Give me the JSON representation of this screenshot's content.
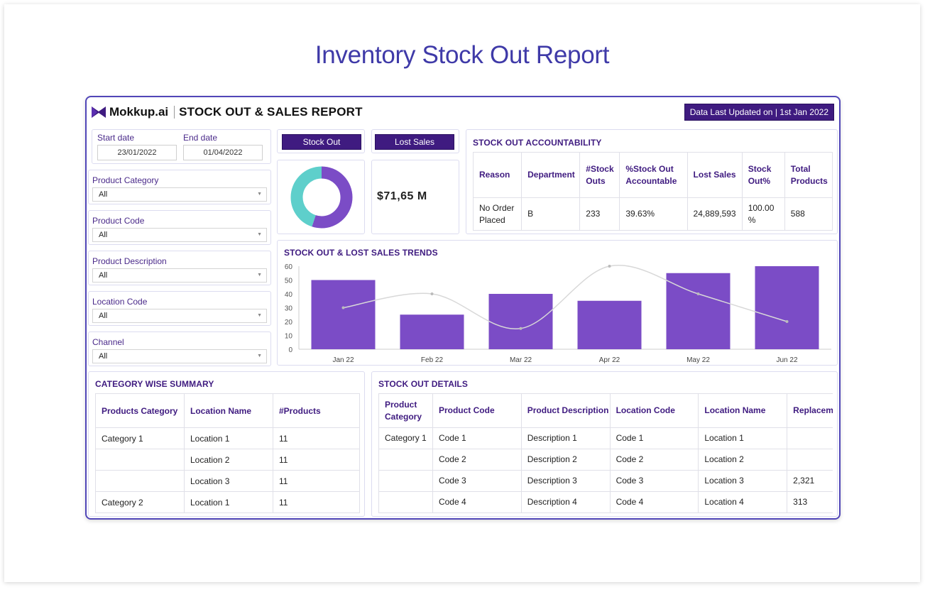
{
  "page_title": "Inventory Stock Out Report",
  "header": {
    "logo_text": "Mokkup.ai",
    "report_title": "STOCK OUT & SALES REPORT",
    "updated": "Data Last Updated on | 1st Jan 2022"
  },
  "filters": {
    "start_label": "Start date",
    "start_value": "23/01/2022",
    "end_label": "End date",
    "end_value": "01/04/2022",
    "items": [
      {
        "label": "Product Category",
        "value": "All"
      },
      {
        "label": "Product Code",
        "value": "All"
      },
      {
        "label": "Product Description",
        "value": "All"
      },
      {
        "label": "Location Code",
        "value": "All"
      },
      {
        "label": "Channel",
        "value": "All"
      }
    ]
  },
  "kpis": {
    "stock_out_label": "Stock Out",
    "lost_sales_label": "Lost Sales",
    "lost_sales_value": "$71,65 M",
    "donut": {
      "values": [
        55,
        45
      ],
      "colors": [
        "#7b4cc6",
        "#5ecfcb"
      ]
    }
  },
  "accountability": {
    "title": "STOCK OUT ACCOUNTABILITY",
    "columns": [
      "Reason",
      "Department",
      "#Stock Outs",
      "%Stock Out Accountable",
      "Lost Sales",
      "Stock Out%",
      "Total Products"
    ],
    "rows": [
      [
        "No Order Placed",
        "B",
        "233",
        "39.63%",
        "24,889,593",
        "100.00 %",
        "588"
      ]
    ]
  },
  "trends": {
    "title": "STOCK OUT & LOST SALES TRENDS"
  },
  "chart_data": {
    "type": "bar",
    "categories": [
      "Jan 22",
      "Feb 22",
      "Mar 22",
      "Apr 22",
      "May 22",
      "Jun 22"
    ],
    "series": [
      {
        "type": "bar",
        "values": [
          50,
          25,
          40,
          35,
          55,
          60
        ]
      },
      {
        "type": "line",
        "values": [
          30,
          40,
          15,
          60,
          40,
          20
        ]
      }
    ],
    "yticks": [
      0,
      10,
      20,
      30,
      40,
      50,
      60
    ],
    "ylim": [
      0,
      60
    ],
    "colors": {
      "bar": "#7b4cc6",
      "line": "#d8d8d8"
    }
  },
  "category_summary": {
    "title": "CATEGORY WISE SUMMARY",
    "columns": [
      "Products Category",
      "Location Name",
      "#Products"
    ],
    "rows": [
      [
        "Category 1",
        "Location 1",
        "11"
      ],
      [
        "",
        "Location 2",
        "11"
      ],
      [
        "",
        "Location 3",
        "11"
      ],
      [
        "Category 2",
        "Location 1",
        "11"
      ]
    ]
  },
  "stock_details": {
    "title": "STOCK OUT DETAILS",
    "columns": [
      "Product Category",
      "Product Code",
      "Product Description",
      "Location Code",
      "Location Name",
      "Replacem Product"
    ],
    "rows": [
      [
        "Category 1",
        "Code 1",
        "Description 1",
        "Code 1",
        "Location 1",
        ""
      ],
      [
        "",
        "Code 2",
        "Description 2",
        "Code 2",
        "Location 2",
        ""
      ],
      [
        "",
        "Code 3",
        "Description 3",
        "Code 3",
        "Location 3",
        "2,321"
      ],
      [
        "",
        "Code 4",
        "Description 4",
        "Code 4",
        "Location 4",
        "313"
      ]
    ]
  },
  "colors": {
    "accent": "#3f1b80",
    "title": "#3f3aa8",
    "border": "#5146b8"
  }
}
